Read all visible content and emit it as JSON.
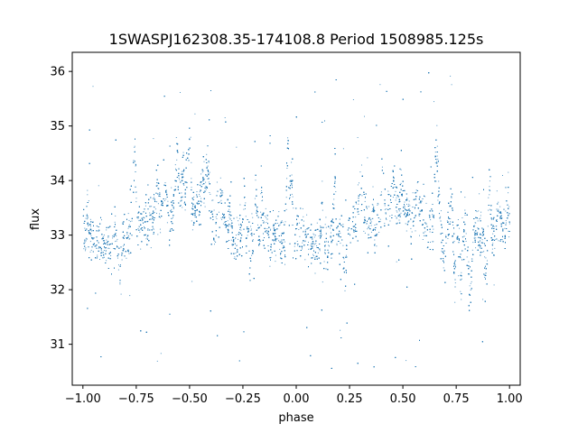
{
  "chart_data": {
    "type": "scatter",
    "title": "1SWASPJ162308.35-174108.8 Period 1508985.125s",
    "xlabel": "phase",
    "ylabel": "flux",
    "xlim": [
      -1.05,
      1.05
    ],
    "ylim": [
      30.25,
      36.35
    ],
    "xticks": [
      -1.0,
      -0.75,
      -0.5,
      -0.25,
      0.0,
      0.25,
      0.5,
      0.75,
      1.0
    ],
    "xtick_labels": [
      "−1.00",
      "−0.75",
      "−0.50",
      "−0.25",
      "0.00",
      "0.25",
      "0.50",
      "0.75",
      "1.00"
    ],
    "yticks": [
      31,
      32,
      33,
      34,
      35,
      36
    ],
    "ytick_labels": [
      "31",
      "32",
      "33",
      "34",
      "35",
      "36"
    ],
    "grid": false,
    "legend": "none",
    "point_color": "#1f77b4",
    "series": [
      {
        "x_range": [
          -1.0,
          1.0
        ],
        "median_flux": 33.1,
        "core_flux_range": [
          32.3,
          34.2
        ],
        "outlier_flux_range": [
          30.5,
          36.0
        ],
        "phase_folded_repeat": true,
        "trend": {
          "phase": [
            -1.0,
            -0.9,
            -0.75,
            -0.6,
            -0.5,
            -0.4,
            -0.25,
            -0.1,
            0.0,
            0.1,
            0.25,
            0.4,
            0.5,
            0.6,
            0.75,
            0.9,
            1.0
          ],
          "flux": [
            33.1,
            32.8,
            33.2,
            33.5,
            33.6,
            33.3,
            33.1,
            33.0,
            33.1,
            32.8,
            33.2,
            33.5,
            33.6,
            33.3,
            33.1,
            33.0,
            33.1
          ]
        }
      }
    ]
  }
}
